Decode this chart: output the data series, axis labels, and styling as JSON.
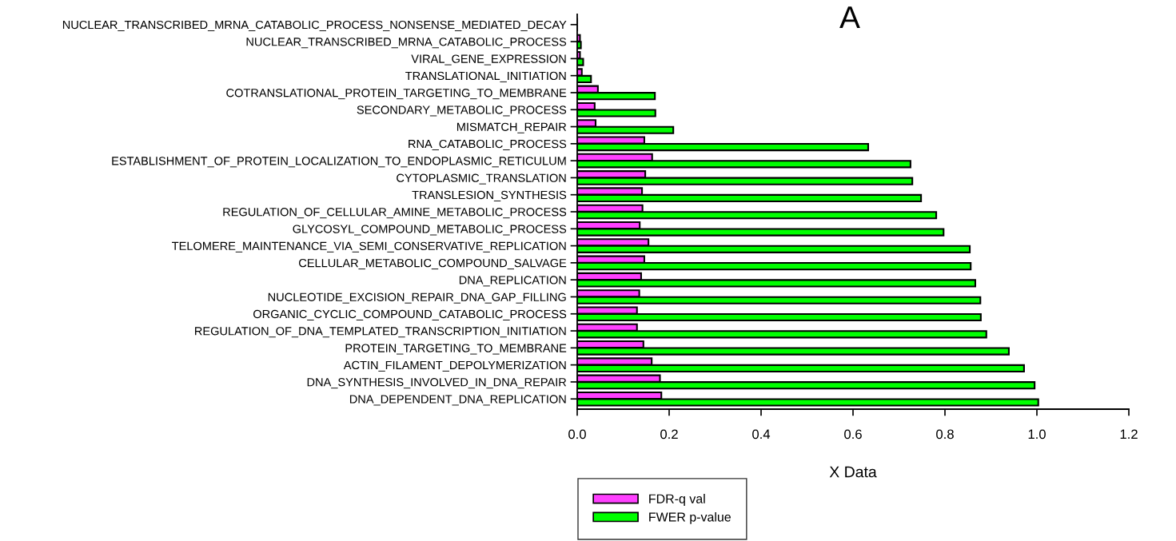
{
  "chart_data": {
    "type": "bar",
    "orientation": "horizontal",
    "title": "A",
    "xlabel": "X Data",
    "categories": [
      "NUCLEAR_TRANSCRIBED_MRNA_CATABOLIC_PROCESS_NONSENSE_MEDIATED_DECAY",
      "NUCLEAR_TRANSCRIBED_MRNA_CATABOLIC_PROCESS",
      "VIRAL_GENE_EXPRESSION",
      "TRANSLATIONAL_INITIATION",
      "COTRANSLATIONAL_PROTEIN_TARGETING_TO_MEMBRANE",
      "SECONDARY_METABOLIC_PROCESS",
      "MISMATCH_REPAIR",
      "RNA_CATABOLIC_PROCESS",
      "ESTABLISHMENT_OF_PROTEIN_LOCALIZATION_TO_ENDOPLASMIC_RETICULUM",
      "CYTOPLASMIC_TRANSLATION",
      "TRANSLESION_SYNTHESIS",
      "REGULATION_OF_CELLULAR_AMINE_METABOLIC_PROCESS",
      "GLYCOSYL_COMPOUND_METABOLIC_PROCESS",
      "TELOMERE_MAINTENANCE_VIA_SEMI_CONSERVATIVE_REPLICATION",
      "CELLULAR_METABOLIC_COMPOUND_SALVAGE",
      "DNA_REPLICATION",
      "NUCLEOTIDE_EXCISION_REPAIR_DNA_GAP_FILLING",
      "ORGANIC_CYCLIC_COMPOUND_CATABOLIC_PROCESS",
      "REGULATION_OF_DNA_TEMPLATED_TRANSCRIPTION_INITIATION",
      "PROTEIN_TARGETING_TO_MEMBRANE",
      "ACTIN_FILAMENT_DEPOLYMERIZATION",
      "DNA_SYNTHESIS_INVOLVED_IN_DNA_REPAIR",
      "DNA_DEPENDENT_DNA_REPLICATION"
    ],
    "series": [
      {
        "name": "FDR-q val",
        "color": "#ff40ff",
        "values": [
          0,
          0.006,
          0.006,
          0.01,
          0.045,
          0.038,
          0.04,
          0.146,
          0.163,
          0.148,
          0.141,
          0.142,
          0.136,
          0.155,
          0.146,
          0.139,
          0.135,
          0.13,
          0.13,
          0.144,
          0.162,
          0.18,
          0.183
        ]
      },
      {
        "name": "FWER p-value",
        "color": "#00ff00",
        "values": [
          0,
          0.008,
          0.013,
          0.03,
          0.169,
          0.17,
          0.209,
          0.633,
          0.725,
          0.729,
          0.748,
          0.781,
          0.797,
          0.854,
          0.856,
          0.866,
          0.877,
          0.878,
          0.89,
          0.939,
          0.972,
          0.995,
          1.003
        ]
      }
    ],
    "xlim": [
      0,
      1.2
    ],
    "xticks": [
      {
        "value": 0,
        "label": "0.0"
      },
      0.2,
      0.4,
      0.6,
      0.8,
      {
        "value": 1.0,
        "label": "1.0"
      },
      1.2
    ],
    "grid": false,
    "legend": "bottom"
  }
}
